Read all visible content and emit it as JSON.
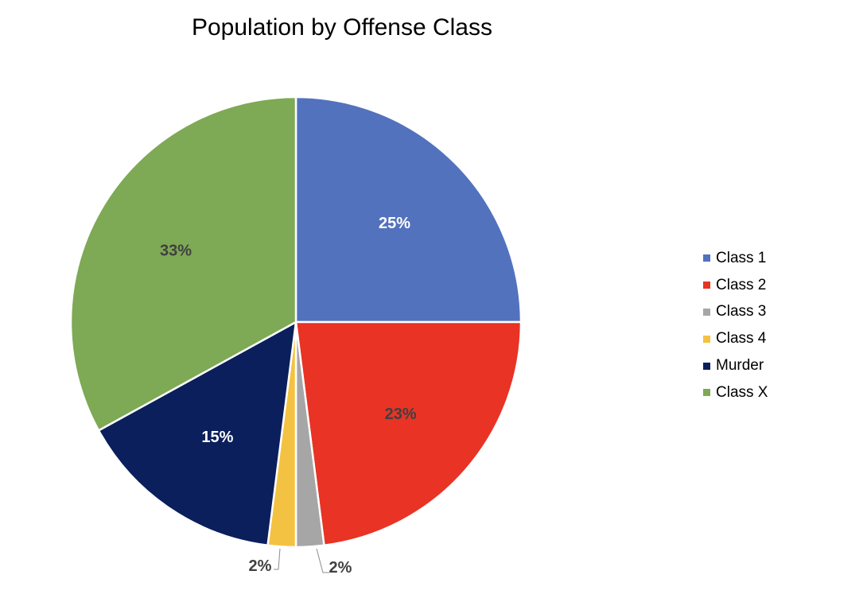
{
  "chart_data": {
    "type": "pie",
    "title": "Population by Offense Class",
    "legend_position": "right",
    "slices": [
      {
        "name": "Class 1",
        "value": 25,
        "label": "25%",
        "color": "#5272BE",
        "label_color": "#FFFFFF"
      },
      {
        "name": "Class 2",
        "value": 23,
        "label": "23%",
        "color": "#E83325",
        "label_color": "#404040"
      },
      {
        "name": "Class 3",
        "value": 2,
        "label": "2%",
        "color": "#A6A6A6",
        "label_color": "#404040"
      },
      {
        "name": "Class 4",
        "value": 2,
        "label": "2%",
        "color": "#F4C242",
        "label_color": "#404040"
      },
      {
        "name": "Murder",
        "value": 15,
        "label": "15%",
        "color": "#0A1F5B",
        "label_color": "#FFFFFF"
      },
      {
        "name": "Class X",
        "value": 33,
        "label": "33%",
        "color": "#7EA955",
        "label_color": "#404040"
      }
    ]
  }
}
